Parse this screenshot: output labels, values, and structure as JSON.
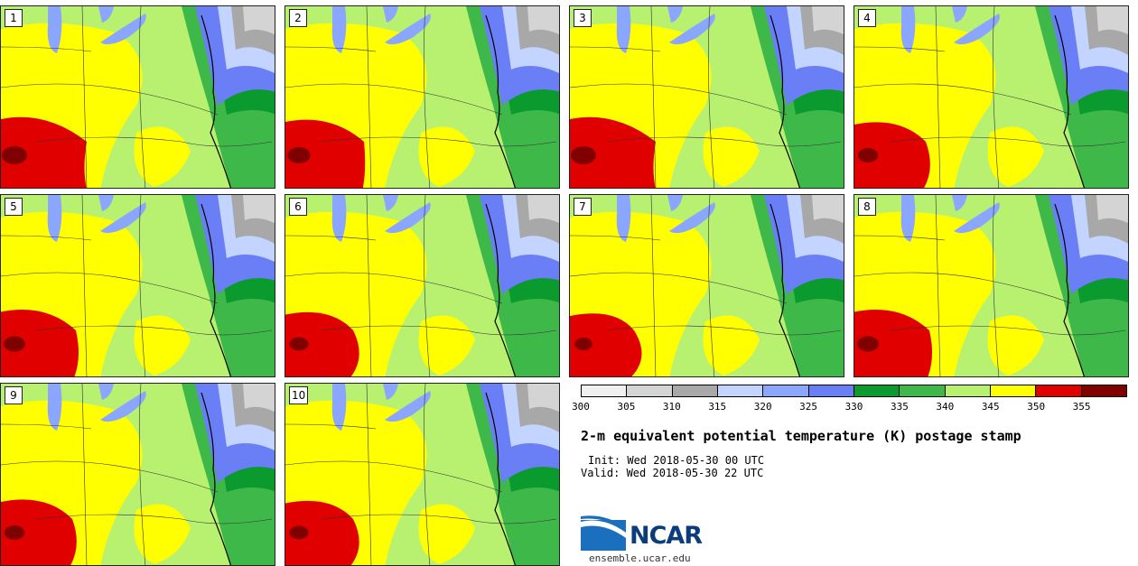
{
  "panels": [
    {
      "label": "1",
      "hot": 1.0
    },
    {
      "label": "2",
      "hot": 0.9
    },
    {
      "label": "3",
      "hot": 1.0
    },
    {
      "label": "4",
      "hot": 0.8
    },
    {
      "label": "5",
      "hot": 0.85
    },
    {
      "label": "6",
      "hot": 0.75
    },
    {
      "label": "7",
      "hot": 0.7
    },
    {
      "label": "8",
      "hot": 0.85
    },
    {
      "label": "9",
      "hot": 0.8
    },
    {
      "label": "10",
      "hot": 0.75
    }
  ],
  "colorbar": {
    "colors": [
      "#f0f0f0",
      "#d4d4d4",
      "#a8a8a8",
      "#c2d4ff",
      "#8aa6ff",
      "#6a7ef5",
      "#0b9a2e",
      "#3fb84a",
      "#b8f070",
      "#ffff00",
      "#e00000",
      "#800000"
    ],
    "ticks": [
      "300",
      "305",
      "310",
      "315",
      "320",
      "325",
      "330",
      "335",
      "340",
      "345",
      "350",
      "355"
    ]
  },
  "title": "2-m equivalent potential temperature (K) postage stamp",
  "init": "Init: Wed 2018-05-30 00 UTC",
  "valid": "Valid: Wed 2018-05-30 22 UTC",
  "logo": {
    "wordmark": "NCAR",
    "site": "ensemble.ucar.edu"
  }
}
